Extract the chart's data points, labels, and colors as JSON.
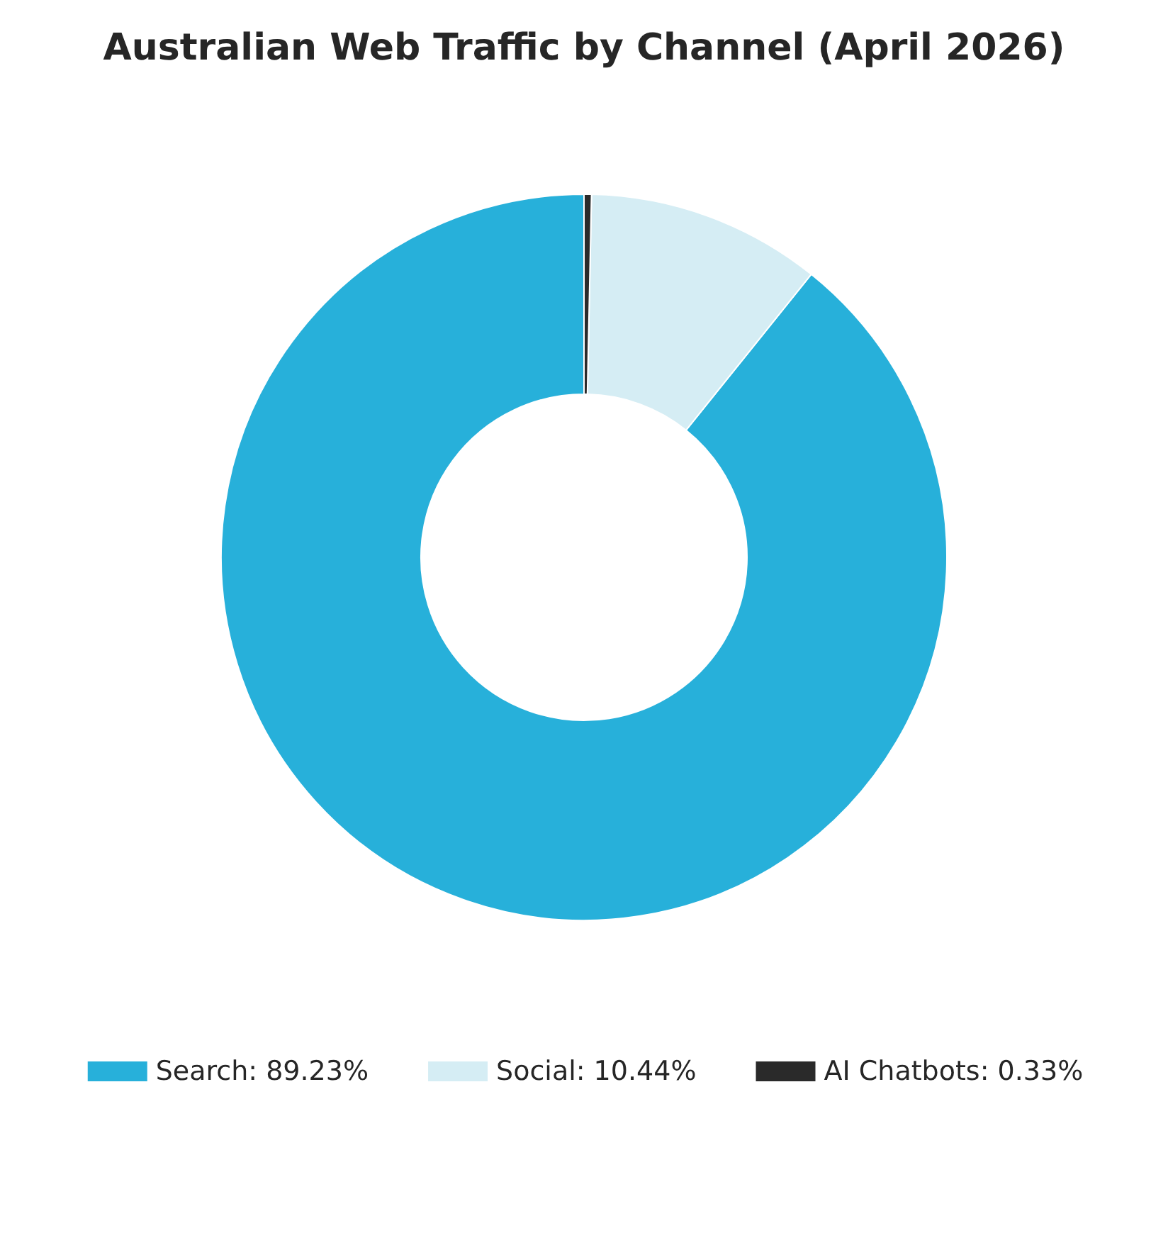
{
  "chart_data": {
    "type": "donut",
    "title": "Australian Web Traffic by Channel (April 2026)",
    "categories": [
      "Search: 89.23%",
      "Social: 10.44%",
      "AI Chatbots: 0.33%"
    ],
    "values": [
      89.23,
      10.44,
      0.33
    ],
    "colors": [
      "#27b0da",
      "#d5edf4",
      "#2a2a2a"
    ],
    "legend": "bottom"
  }
}
